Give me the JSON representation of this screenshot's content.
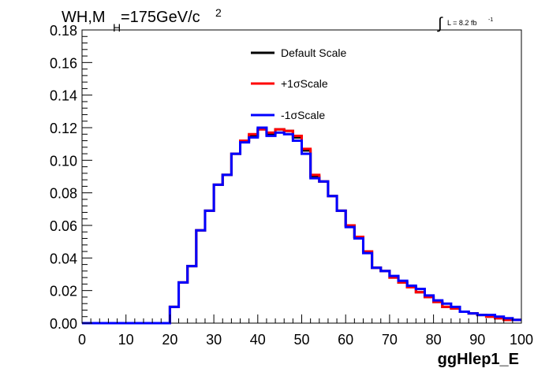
{
  "chart_data": {
    "type": "line",
    "title": "WH,M",
    "title_sub": "H",
    "title_rest": "=175GeV/c",
    "title_sup": "2",
    "lumi_label": "L = 8.2 fb",
    "lumi_sup": "-1",
    "xlabel": "ggHlep1_E",
    "ylabel": "",
    "xlim": [
      0,
      100
    ],
    "ylim": [
      0,
      0.18
    ],
    "grid": false,
    "legend_position": "top-center",
    "x_ticks": [
      "0",
      "10",
      "20",
      "30",
      "40",
      "50",
      "60",
      "70",
      "80",
      "90",
      "100"
    ],
    "y_ticks": [
      "0.00",
      "0.02",
      "0.04",
      "0.06",
      "0.08",
      "0.10",
      "0.12",
      "0.14",
      "0.16",
      "0.18"
    ],
    "bin_width": 2,
    "bin_start": 0,
    "series": [
      {
        "name": "Default Scale",
        "color": "#000000",
        "values": [
          0,
          0,
          0,
          0,
          0,
          0,
          0,
          0,
          0,
          0,
          0.01,
          0.025,
          0.035,
          0.057,
          0.069,
          0.085,
          0.091,
          0.104,
          0.112,
          0.115,
          0.119,
          0.116,
          0.119,
          0.118,
          0.114,
          0.106,
          0.09,
          0.087,
          0.078,
          0.069,
          0.06,
          0.053,
          0.044,
          0.034,
          0.032,
          0.028,
          0.025,
          0.022,
          0.019,
          0.016,
          0.013,
          0.01,
          0.009,
          0.007,
          0.006,
          0.005,
          0.004,
          0.003,
          0.002,
          0.002
        ]
      },
      {
        "name": "+1σScale",
        "color": "#ff0000",
        "values": [
          0,
          0,
          0,
          0,
          0,
          0,
          0,
          0,
          0,
          0,
          0.01,
          0.025,
          0.035,
          0.057,
          0.069,
          0.085,
          0.091,
          0.104,
          0.112,
          0.116,
          0.119,
          0.117,
          0.119,
          0.118,
          0.115,
          0.107,
          0.091,
          0.087,
          0.078,
          0.069,
          0.06,
          0.053,
          0.044,
          0.034,
          0.032,
          0.028,
          0.025,
          0.022,
          0.019,
          0.016,
          0.013,
          0.01,
          0.009,
          0.007,
          0.006,
          0.005,
          0.004,
          0.003,
          0.002,
          0.002
        ]
      },
      {
        "name": "-1σScale",
        "color": "#0000ff",
        "values": [
          0,
          0,
          0,
          0,
          0,
          0,
          0,
          0,
          0,
          0,
          0.01,
          0.025,
          0.035,
          0.057,
          0.069,
          0.085,
          0.091,
          0.104,
          0.111,
          0.114,
          0.12,
          0.115,
          0.117,
          0.116,
          0.112,
          0.104,
          0.089,
          0.087,
          0.078,
          0.069,
          0.059,
          0.052,
          0.043,
          0.034,
          0.032,
          0.029,
          0.026,
          0.023,
          0.021,
          0.017,
          0.014,
          0.012,
          0.01,
          0.007,
          0.006,
          0.005,
          0.005,
          0.004,
          0.003,
          0.002
        ]
      }
    ]
  }
}
